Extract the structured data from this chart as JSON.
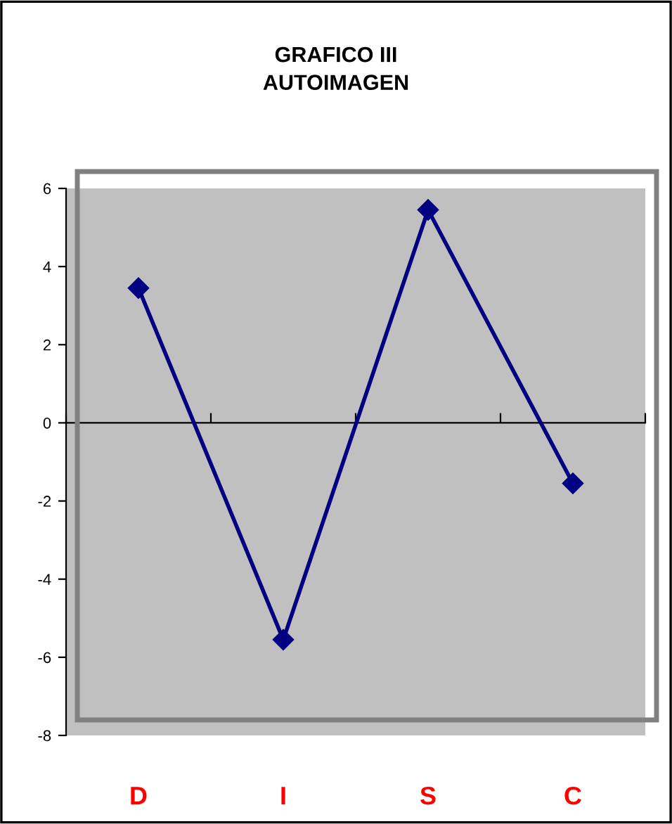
{
  "chart_data": {
    "type": "line",
    "title": "GRAFICO III\nAUTOIMAGEN",
    "categories": [
      "D",
      "I",
      "S",
      "C"
    ],
    "series": [
      {
        "color": "#000080",
        "values": [
          3.45,
          -5.55,
          5.45,
          -1.55
        ]
      }
    ],
    "ylim": [
      -8,
      6
    ],
    "yticks": [
      -8,
      -6,
      -4,
      -2,
      0,
      2,
      4,
      6
    ],
    "marker": "diamond",
    "line_style": "solid",
    "legend": false
  }
}
